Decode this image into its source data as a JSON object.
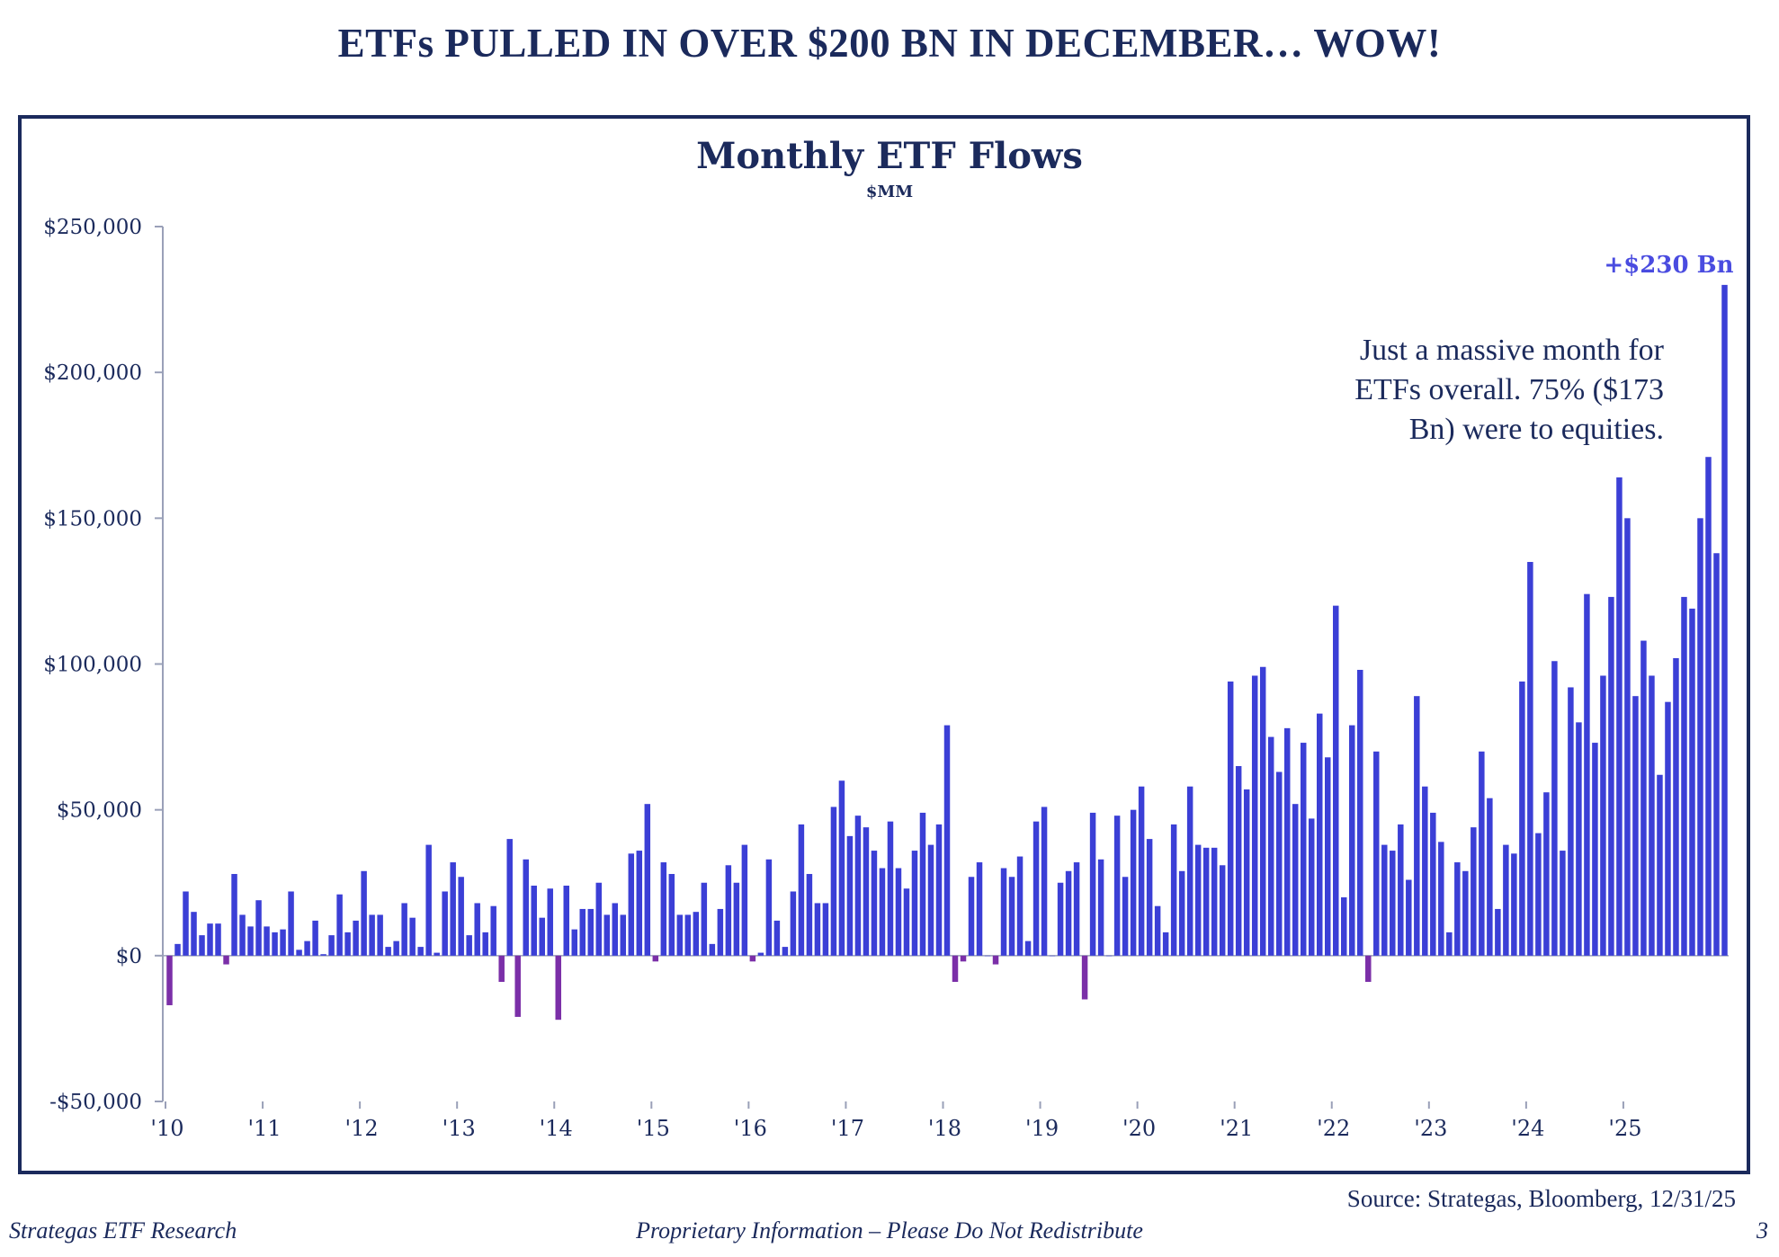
{
  "headline": "ETFs PULLED IN OVER $200 BN IN DECEMBER… WOW!",
  "annotation": {
    "lines": [
      "Just a massive month for",
      "ETFs overall. 75% ($173",
      "Bn) were to equities."
    ],
    "peak_label": "+$230 Bn"
  },
  "source": "Source: Strategas, Bloomberg, 12/31/25",
  "footer": {
    "left": "Strategas ETF Research",
    "center": "Proprietary Information – Please Do Not Redistribute",
    "page_number": "3"
  },
  "colors": {
    "positive_bar": "#3b3fd6",
    "negative_bar": "#7b2fa8",
    "text": "#1b2a5c",
    "peak_label": "#4a4ce0"
  },
  "chart_data": {
    "type": "bar",
    "title": "Monthly ETF Flows",
    "subtitle": "$MM",
    "xlabel": "",
    "ylabel": "",
    "ylim": [
      -50000,
      250000
    ],
    "yticks": [
      -50000,
      0,
      50000,
      100000,
      150000,
      200000,
      250000
    ],
    "ytick_labels": [
      "-$50,000",
      "$0",
      "$50,000",
      "$100,000",
      "$150,000",
      "$200,000",
      "$250,000"
    ],
    "xtick_labels": [
      "'10",
      "'11",
      "'12",
      "'13",
      "'14",
      "'15",
      "'16",
      "'17",
      "'18",
      "'19",
      "'20",
      "'21",
      "'22",
      "'23",
      "'24",
      "'25"
    ],
    "period": "Jan 2010 - Dec 2025, monthly",
    "values": [
      -17000,
      4000,
      22000,
      15000,
      7000,
      11000,
      11000,
      -3000,
      28000,
      14000,
      10000,
      19000,
      10000,
      8000,
      9000,
      22000,
      2000,
      5000,
      12000,
      500,
      7000,
      21000,
      8000,
      12000,
      29000,
      14000,
      14000,
      3000,
      5000,
      18000,
      13000,
      3000,
      38000,
      1000,
      22000,
      32000,
      27000,
      7000,
      18000,
      8000,
      17000,
      -9000,
      40000,
      -21000,
      33000,
      24000,
      13000,
      23000,
      -22000,
      24000,
      9000,
      16000,
      16000,
      25000,
      14000,
      18000,
      14000,
      35000,
      36000,
      52000,
      -2000,
      32000,
      28000,
      14000,
      14000,
      15000,
      25000,
      4000,
      16000,
      31000,
      25000,
      38000,
      -2000,
      1000,
      33000,
      12000,
      3000,
      22000,
      45000,
      28000,
      18000,
      18000,
      51000,
      60000,
      41000,
      48000,
      44000,
      36000,
      30000,
      46000,
      30000,
      23000,
      36000,
      49000,
      38000,
      45000,
      79000,
      -9000,
      -2000,
      27000,
      32000,
      0,
      -3000,
      30000,
      27000,
      34000,
      5000,
      46000,
      51000,
      0,
      25000,
      29000,
      32000,
      -15000,
      49000,
      33000,
      0,
      48000,
      27000,
      50000,
      58000,
      40000,
      17000,
      8000,
      45000,
      29000,
      58000,
      38000,
      37000,
      37000,
      31000,
      94000,
      65000,
      57000,
      96000,
      99000,
      75000,
      63000,
      78000,
      52000,
      73000,
      47000,
      83000,
      68000,
      120000,
      20000,
      79000,
      98000,
      -9000,
      70000,
      38000,
      36000,
      45000,
      26000,
      89000,
      58000,
      49000,
      39000,
      8000,
      32000,
      29000,
      44000,
      70000,
      54000,
      16000,
      38000,
      35000,
      94000,
      135000,
      42000,
      56000,
      101000,
      36000,
      92000,
      80000,
      124000,
      73000,
      96000,
      123000,
      164000,
      150000,
      89000,
      108000,
      96000,
      62000,
      87000,
      102000,
      123000,
      119000,
      150000,
      171000,
      138000,
      230000
    ]
  }
}
